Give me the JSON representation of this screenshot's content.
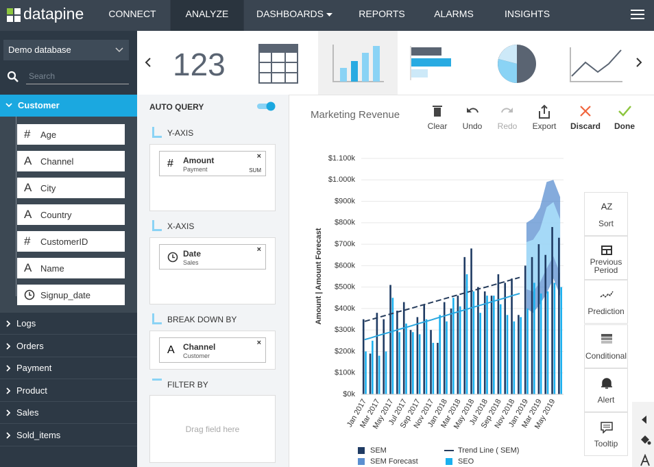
{
  "nav": {
    "brand": "datapine",
    "items": [
      "CONNECT",
      "ANALYZE",
      "DASHBOARDS",
      "REPORTS",
      "ALARMS",
      "INSIGHTS"
    ],
    "active": "ANALYZE"
  },
  "sidebar": {
    "database": "Demo database",
    "search_placeholder": "Search",
    "open_group": {
      "name": "Customer",
      "fields": [
        {
          "icon": "#",
          "name": "Age"
        },
        {
          "icon": "A",
          "name": "Channel"
        },
        {
          "icon": "A",
          "name": "City"
        },
        {
          "icon": "A",
          "name": "Country"
        },
        {
          "icon": "#",
          "name": "CustomerID"
        },
        {
          "icon": "A",
          "name": "Name"
        },
        {
          "name": "Signup_date"
        }
      ]
    },
    "groups": [
      "Logs",
      "Orders",
      "Payment",
      "Product",
      "Sales",
      "Sold_items"
    ]
  },
  "widget_bar": {
    "number_icon": "123"
  },
  "query": {
    "auto_query": "AUTO QUERY",
    "sections": [
      {
        "title": "Y-AXIS",
        "field": {
          "icon": "#",
          "name": "Amount",
          "source": "Payment",
          "agg": "SUM"
        }
      },
      {
        "title": "X-AXIS",
        "field": {
          "name": "Date",
          "source": "Sales"
        }
      },
      {
        "title": "BREAK DOWN BY",
        "field": {
          "icon": "A",
          "name": "Channel",
          "source": "Customer"
        }
      }
    ],
    "filter": {
      "title": "FILTER BY",
      "placeholder": "Drag field here"
    }
  },
  "toolbar": [
    "Clear",
    "Undo",
    "Redo",
    "Export",
    "Discard",
    "Done"
  ],
  "side_tools": [
    "Sort",
    "Previous Period",
    "Prediction",
    "Conditional",
    "Alert",
    "Tooltip"
  ],
  "chart_data": {
    "type": "bar",
    "title": "Marketing Revenue",
    "y_label": "Amount | Amount Forecast",
    "categories": [
      "Jan 2017",
      null,
      "Mar 2017",
      null,
      "May 2017",
      null,
      "Jul 2017",
      null,
      "Sep 2017",
      null,
      "Nov 2017",
      null,
      "Jan 2018",
      null,
      "Mar 2018",
      null,
      "May 2018",
      null,
      "Jul 2018",
      null,
      "Sep 2018",
      null,
      "Nov 2018",
      null,
      "Jan 2019",
      null,
      "Mar 2019",
      null,
      "May 2019",
      null
    ],
    "ylim": [
      0,
      1100
    ],
    "yticks": [
      {
        "value": 0,
        "label": "$0k"
      },
      {
        "value": 100,
        "label": "$100k"
      },
      {
        "value": 200,
        "label": "$200k"
      },
      {
        "value": 300,
        "label": "$300k"
      },
      {
        "value": 400,
        "label": "$400k"
      },
      {
        "value": 500,
        "label": "$500k"
      },
      {
        "value": 600,
        "label": "$600k"
      },
      {
        "value": 700,
        "label": "$700k"
      },
      {
        "value": 800,
        "label": "$800k"
      },
      {
        "value": 900,
        "label": "$900k"
      },
      {
        "value": 1000,
        "label": "$1.000k"
      },
      {
        "value": 1100,
        "label": "$1.100k"
      }
    ],
    "grid": true,
    "series": [
      {
        "name": "SEM",
        "kind": "bar",
        "color": "#1f3b63",
        "values": [
          350,
          190,
          380,
          350,
          510,
          390,
          430,
          300,
          360,
          420,
          300,
          240,
          430,
          400,
          460,
          640,
          680,
          500,
          480,
          460,
          560,
          520,
          540,
          370,
          600,
          640,
          700,
          650,
          780,
          730
        ]
      },
      {
        "name": "SEM Forecast",
        "kind": "band",
        "color": "#5b8fd0",
        "values": [
          null,
          null,
          null,
          null,
          null,
          null,
          null,
          null,
          null,
          null,
          null,
          null,
          null,
          null,
          null,
          null,
          null,
          null,
          null,
          null,
          null,
          null,
          null,
          null,
          800,
          820,
          870,
          990,
          1000,
          920
        ],
        "lower": [
          null,
          null,
          null,
          null,
          null,
          null,
          null,
          null,
          null,
          null,
          null,
          null,
          null,
          null,
          null,
          null,
          null,
          null,
          null,
          null,
          null,
          null,
          null,
          null,
          400,
          380,
          420,
          470,
          540,
          460
        ]
      },
      {
        "name": "SEO",
        "kind": "bar",
        "color": "#1ab0ef",
        "values": [
          200,
          250,
          180,
          200,
          450,
          290,
          330,
          290,
          280,
          350,
          240,
          370,
          340,
          450,
          410,
          560,
          480,
          380,
          460,
          460,
          420,
          370,
          340,
          360,
          400,
          520,
          470,
          480,
          520,
          500
        ]
      }
    ],
    "trend_lines": [
      {
        "name": "Trend Line ( SEM)",
        "color": "#263c5c",
        "dashed": true,
        "values": [
          340,
          349,
          358,
          367,
          376,
          385,
          393,
          402,
          411,
          420,
          429,
          438,
          447,
          456,
          465,
          474,
          483,
          492,
          500,
          509,
          518,
          527,
          536,
          545,
          null,
          null,
          null,
          null,
          null,
          null
        ]
      },
      {
        "color": "#2aa6df",
        "dashed": false,
        "values": [
          255,
          264,
          274,
          283,
          292,
          302,
          311,
          320,
          330,
          339,
          348,
          358,
          367,
          377,
          386,
          395,
          405,
          414,
          423,
          433,
          442,
          451,
          461,
          470,
          null,
          null,
          null,
          null,
          null,
          null
        ]
      }
    ]
  }
}
